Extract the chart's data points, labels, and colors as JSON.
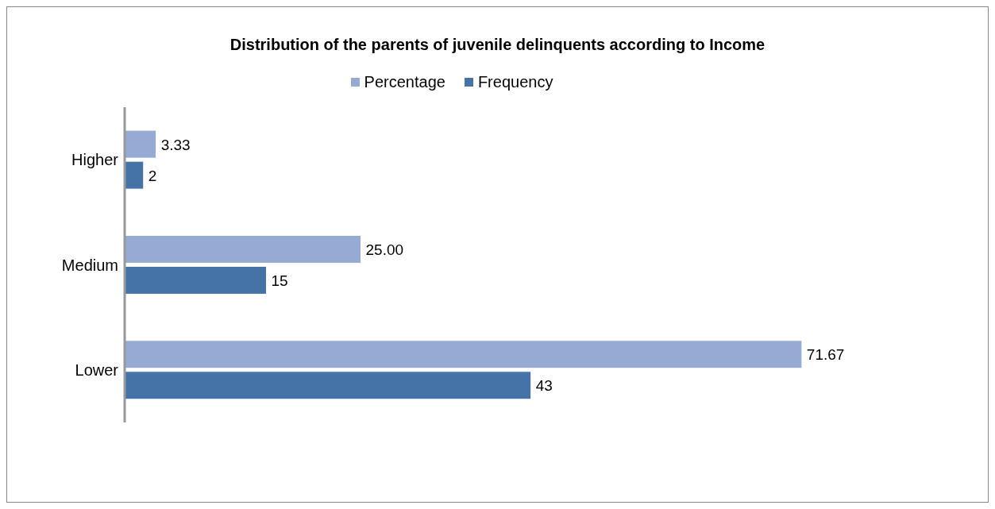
{
  "chart_data": {
    "type": "bar",
    "orientation": "horizontal",
    "title": "Distribution of the parents of juvenile delinquents according to Income",
    "categories": [
      "Higher",
      "Medium",
      "Lower"
    ],
    "series": [
      {
        "name": "Percentage",
        "color": "#95abd4",
        "values": [
          3.33,
          25.0,
          71.67
        ],
        "value_labels": [
          "3.33",
          "25.00",
          "71.67"
        ]
      },
      {
        "name": "Frequency",
        "color": "#4573a7",
        "values": [
          2,
          15,
          43
        ],
        "value_labels": [
          "2",
          "15",
          "43"
        ]
      }
    ],
    "legend": "top"
  }
}
